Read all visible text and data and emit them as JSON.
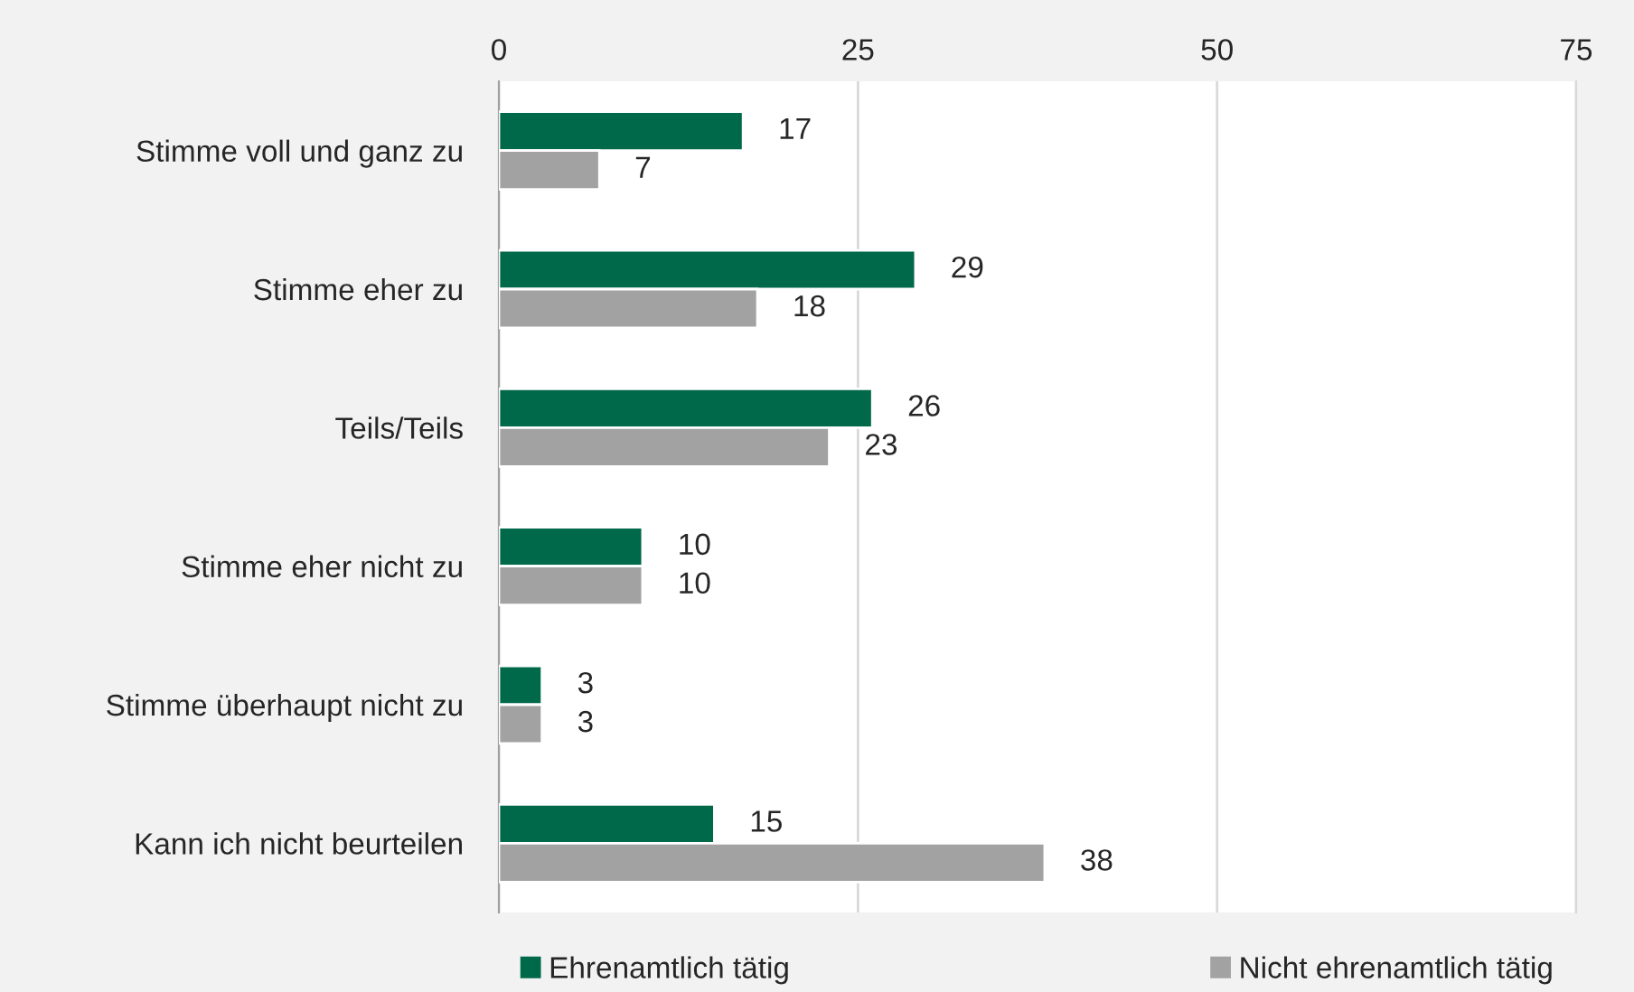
{
  "chart_data": {
    "type": "bar",
    "orientation": "horizontal",
    "categories": [
      "Stimme voll und ganz zu",
      "Stimme eher zu",
      "Teils/Teils",
      "Stimme eher nicht zu",
      "Stimme überhaupt nicht zu",
      "Kann ich nicht beurteilen"
    ],
    "series": [
      {
        "name": "Ehrenamtlich tätig",
        "color": "#00694a",
        "values": [
          17,
          29,
          26,
          10,
          3,
          15
        ]
      },
      {
        "name": "Nicht ehrenamtlich tätig",
        "color": "#a2a2a2",
        "values": [
          7,
          18,
          23,
          10,
          3,
          38
        ]
      }
    ],
    "xlim": [
      0,
      75
    ],
    "xticks": [
      0,
      25,
      50,
      75
    ],
    "grid": "x",
    "legend": "bottom",
    "data_labels": true
  }
}
